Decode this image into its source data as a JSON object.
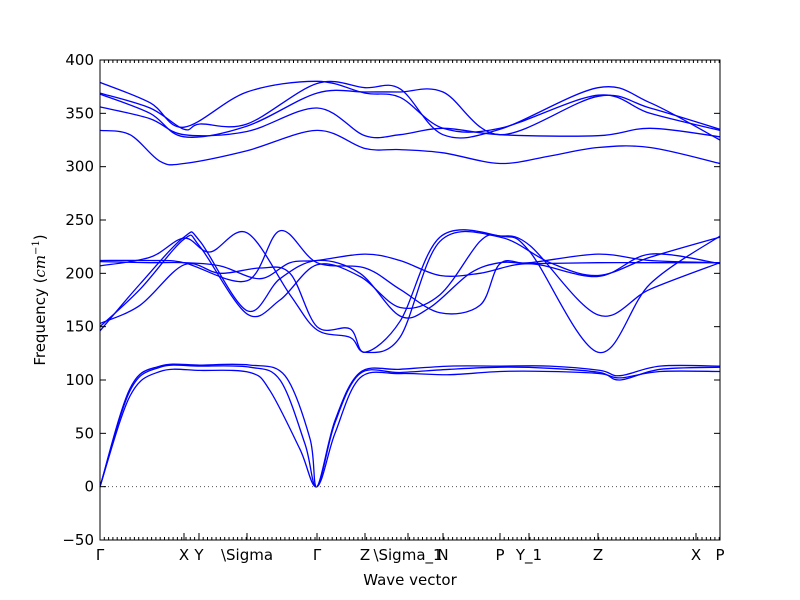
{
  "chart_data": {
    "type": "line",
    "title": "",
    "xlabel": "Wave vector",
    "ylabel": "Frequency (cm⁻¹)",
    "ylabel_parts": {
      "prefix": "Frequency (",
      "unit": "cm",
      "exponent": "−1",
      "suffix": ")"
    },
    "xlim": [
      0,
      6.2
    ],
    "ylim": [
      -50,
      400
    ],
    "yticks": [
      -50,
      0,
      50,
      100,
      150,
      200,
      250,
      300,
      350,
      400
    ],
    "zero_line": true,
    "high_symmetry_points": [
      {
        "label": "Γ",
        "x": 0
      },
      {
        "label": "X",
        "x": 0.84
      },
      {
        "label": "Y",
        "x": 0.99
      },
      {
        "label": "\\Sigma",
        "x": 1.47
      },
      {
        "label": "Γ",
        "x": 2.17
      },
      {
        "label": "Z",
        "x": 2.65
      },
      {
        "label": "\\Sigma_1",
        "x": 3.08
      },
      {
        "label": "N",
        "x": 3.43
      },
      {
        "label": "P",
        "x": 4.0
      },
      {
        "label": "Y_1",
        "x": 4.29
      },
      {
        "label": "Z",
        "x": 4.98
      },
      {
        "label": "X",
        "x": 5.96
      },
      {
        "label": "P",
        "x": 6.2
      }
    ],
    "series": [
      {
        "points": [
          [
            0,
            0
          ],
          [
            0.3,
            85
          ],
          [
            0.6,
            108
          ],
          [
            1.0,
            109
          ],
          [
            1.5,
            107
          ],
          [
            1.7,
            90
          ],
          [
            2.0,
            35
          ],
          [
            2.17,
            0
          ],
          [
            2.35,
            50
          ],
          [
            2.6,
            102
          ],
          [
            3.0,
            106
          ],
          [
            3.5,
            105
          ],
          [
            4.0,
            108
          ],
          [
            4.5,
            108
          ],
          [
            5.0,
            106
          ],
          [
            5.2,
            102
          ],
          [
            5.6,
            108
          ],
          [
            6.2,
            108
          ]
        ]
      },
      {
        "points": [
          [
            0,
            0
          ],
          [
            0.3,
            90
          ],
          [
            0.6,
            112
          ],
          [
            1.0,
            113
          ],
          [
            1.5,
            112
          ],
          [
            1.8,
            100
          ],
          [
            2.05,
            40
          ],
          [
            2.17,
            0
          ],
          [
            2.35,
            60
          ],
          [
            2.6,
            106
          ],
          [
            3.0,
            107
          ],
          [
            3.5,
            110
          ],
          [
            4.0,
            112
          ],
          [
            4.5,
            111
          ],
          [
            5.0,
            107
          ],
          [
            5.2,
            100
          ],
          [
            5.6,
            110
          ],
          [
            6.2,
            112
          ]
        ]
      },
      {
        "points": [
          [
            0,
            0
          ],
          [
            0.3,
            92
          ],
          [
            0.6,
            113
          ],
          [
            1.0,
            114
          ],
          [
            1.5,
            114
          ],
          [
            1.85,
            104
          ],
          [
            2.1,
            45
          ],
          [
            2.17,
            0
          ],
          [
            2.35,
            62
          ],
          [
            2.6,
            107
          ],
          [
            3.0,
            110
          ],
          [
            3.5,
            113
          ],
          [
            4.0,
            113
          ],
          [
            4.5,
            113
          ],
          [
            5.0,
            109
          ],
          [
            5.2,
            104
          ],
          [
            5.6,
            113
          ],
          [
            6.2,
            113
          ]
        ]
      },
      {
        "points": [
          [
            0,
            146
          ],
          [
            0.4,
            190
          ],
          [
            0.84,
            234
          ],
          [
            1.0,
            230
          ],
          [
            1.47,
            165
          ],
          [
            1.8,
            195
          ],
          [
            2.17,
            212
          ],
          [
            2.6,
            200
          ],
          [
            3.0,
            160
          ],
          [
            3.3,
            168
          ],
          [
            3.7,
            200
          ],
          [
            4.0,
            210
          ],
          [
            4.3,
            210
          ],
          [
            4.98,
            218
          ],
          [
            5.5,
            212
          ],
          [
            6.2,
            210
          ]
        ]
      },
      {
        "points": [
          [
            0,
            150
          ],
          [
            0.4,
            185
          ],
          [
            0.84,
            232
          ],
          [
            1.0,
            225
          ],
          [
            1.47,
            162
          ],
          [
            1.8,
            175
          ],
          [
            2.17,
            208
          ],
          [
            2.6,
            197
          ],
          [
            3.0,
            168
          ],
          [
            3.4,
            180
          ],
          [
            3.8,
            230
          ],
          [
            4.0,
            235
          ],
          [
            4.3,
            226
          ],
          [
            4.98,
            161
          ],
          [
            5.5,
            185
          ],
          [
            6.2,
            210
          ]
        ]
      },
      {
        "points": [
          [
            0,
            153
          ],
          [
            0.4,
            170
          ],
          [
            0.84,
            208
          ],
          [
            1.2,
            200
          ],
          [
            1.6,
            205
          ],
          [
            1.9,
            200
          ],
          [
            2.17,
            150
          ],
          [
            2.5,
            148
          ],
          [
            2.65,
            126
          ],
          [
            3.0,
            155
          ],
          [
            3.4,
            234
          ],
          [
            4.0,
            235
          ],
          [
            4.3,
            220
          ],
          [
            4.98,
            126
          ],
          [
            5.5,
            190
          ],
          [
            6.2,
            235
          ]
        ]
      },
      {
        "points": [
          [
            0,
            207
          ],
          [
            0.5,
            215
          ],
          [
            0.84,
            233
          ],
          [
            1.1,
            220
          ],
          [
            1.47,
            238
          ],
          [
            1.9,
            180
          ],
          [
            2.17,
            147
          ],
          [
            2.5,
            140
          ],
          [
            2.65,
            126
          ],
          [
            3.0,
            140
          ],
          [
            3.4,
            230
          ],
          [
            4.0,
            234
          ],
          [
            4.5,
            210
          ],
          [
            4.98,
            198
          ],
          [
            5.5,
            215
          ],
          [
            6.2,
            234
          ]
        ]
      },
      {
        "points": [
          [
            0,
            211
          ],
          [
            0.5,
            210
          ],
          [
            0.84,
            210
          ],
          [
            1.2,
            207
          ],
          [
            1.6,
            195
          ],
          [
            1.9,
            210
          ],
          [
            2.17,
            212
          ],
          [
            2.65,
            218
          ],
          [
            3.0,
            212
          ],
          [
            3.4,
            198
          ],
          [
            3.8,
            200
          ],
          [
            4.3,
            209
          ],
          [
            4.98,
            197
          ],
          [
            5.5,
            218
          ],
          [
            6.2,
            209
          ]
        ]
      },
      {
        "points": [
          [
            0,
            212
          ],
          [
            0.5,
            212
          ],
          [
            0.84,
            210
          ],
          [
            1.47,
            193
          ],
          [
            1.8,
            240
          ],
          [
            2.17,
            210
          ],
          [
            2.65,
            205
          ],
          [
            3.0,
            185
          ],
          [
            3.4,
            163
          ],
          [
            3.8,
            170
          ],
          [
            4.0,
            209
          ],
          [
            4.3,
            209
          ],
          [
            4.98,
            210
          ],
          [
            5.5,
            210
          ],
          [
            6.2,
            210
          ]
        ]
      },
      {
        "points": [
          [
            0,
            334
          ],
          [
            0.3,
            330
          ],
          [
            0.6,
            305
          ],
          [
            0.84,
            303
          ],
          [
            1.47,
            315
          ],
          [
            2.17,
            334
          ],
          [
            2.65,
            317
          ],
          [
            3.0,
            316
          ],
          [
            3.43,
            313
          ],
          [
            4.0,
            303
          ],
          [
            4.5,
            310
          ],
          [
            4.98,
            318
          ],
          [
            5.5,
            318
          ],
          [
            6.2,
            303
          ]
        ]
      },
      {
        "points": [
          [
            0,
            356
          ],
          [
            0.5,
            345
          ],
          [
            0.84,
            330
          ],
          [
            1.47,
            333
          ],
          [
            2.17,
            355
          ],
          [
            2.65,
            329
          ],
          [
            3.0,
            330
          ],
          [
            3.43,
            336
          ],
          [
            4.0,
            330
          ],
          [
            4.98,
            329
          ],
          [
            5.5,
            336
          ],
          [
            6.2,
            328
          ]
        ]
      },
      {
        "points": [
          [
            0,
            368
          ],
          [
            0.5,
            350
          ],
          [
            0.84,
            328
          ],
          [
            1.47,
            338
          ],
          [
            2.17,
            369
          ],
          [
            2.65,
            370
          ],
          [
            3.0,
            370
          ],
          [
            3.43,
            370
          ],
          [
            4.0,
            330
          ],
          [
            4.98,
            366
          ],
          [
            5.5,
            355
          ],
          [
            6.2,
            335
          ]
        ]
      },
      {
        "points": [
          [
            0,
            369
          ],
          [
            0.5,
            355
          ],
          [
            0.84,
            335
          ],
          [
            1.0,
            340
          ],
          [
            1.47,
            340
          ],
          [
            2.17,
            378
          ],
          [
            2.65,
            374
          ],
          [
            3.0,
            373
          ],
          [
            3.43,
            330
          ],
          [
            4.0,
            335
          ],
          [
            4.98,
            374
          ],
          [
            5.5,
            360
          ],
          [
            6.2,
            325
          ]
        ]
      },
      {
        "points": [
          [
            0,
            379
          ],
          [
            0.5,
            360
          ],
          [
            0.84,
            337
          ],
          [
            1.47,
            370
          ],
          [
            2.17,
            380
          ],
          [
            2.65,
            369
          ],
          [
            3.0,
            365
          ],
          [
            3.43,
            336
          ],
          [
            4.0,
            336
          ],
          [
            4.98,
            367
          ],
          [
            5.5,
            350
          ],
          [
            6.2,
            334
          ]
        ]
      }
    ]
  }
}
